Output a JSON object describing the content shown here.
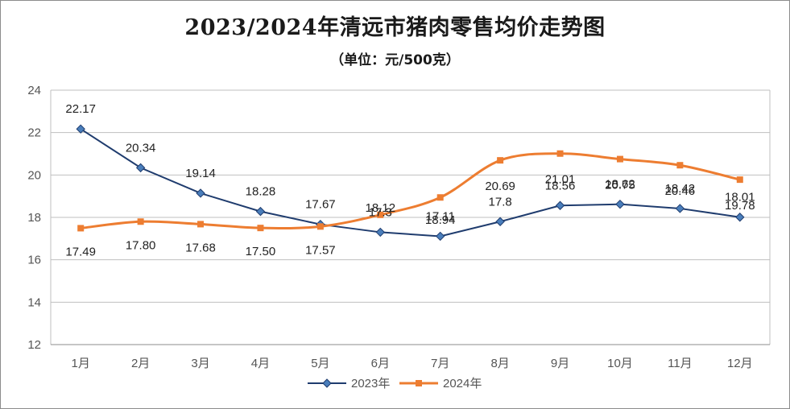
{
  "chart_data": {
    "type": "line",
    "title": "2023/2024年清远市猪肉零售均价走势图",
    "subtitle": "（单位：元/500克）",
    "categories": [
      "1月",
      "2月",
      "3月",
      "4月",
      "5月",
      "6月",
      "7月",
      "8月",
      "9月",
      "10月",
      "11月",
      "12月"
    ],
    "ylim": [
      12,
      24
    ],
    "yticks": [
      "12",
      "14",
      "16",
      "18",
      "20",
      "22",
      "24"
    ],
    "grid": true,
    "legend_position": "bottom",
    "series": [
      {
        "name": "2023年",
        "color": "#1f3c6e",
        "marker": "diamond",
        "values": [
          22.17,
          20.34,
          19.14,
          18.28,
          17.67,
          17.3,
          17.11,
          17.8,
          18.56,
          18.62,
          18.42,
          18.01
        ],
        "labels": [
          "22.17",
          "20.34",
          "19.14",
          "18.28",
          "17.67",
          "17.3",
          "17.11",
          "17.8",
          "18.56",
          "18.62",
          "18.42",
          "18.01"
        ]
      },
      {
        "name": "2024年",
        "color": "#ed7d31",
        "marker": "square",
        "values": [
          17.49,
          17.8,
          17.68,
          17.5,
          17.57,
          18.12,
          18.94,
          20.69,
          21.01,
          20.75,
          20.46,
          19.78
        ],
        "labels": [
          "17.49",
          "17.80",
          "17.68",
          "17.50",
          "17.57",
          "18.12",
          "18.94",
          "20.69",
          "21.01",
          "20.75",
          "20.46",
          "19.78"
        ]
      }
    ]
  }
}
